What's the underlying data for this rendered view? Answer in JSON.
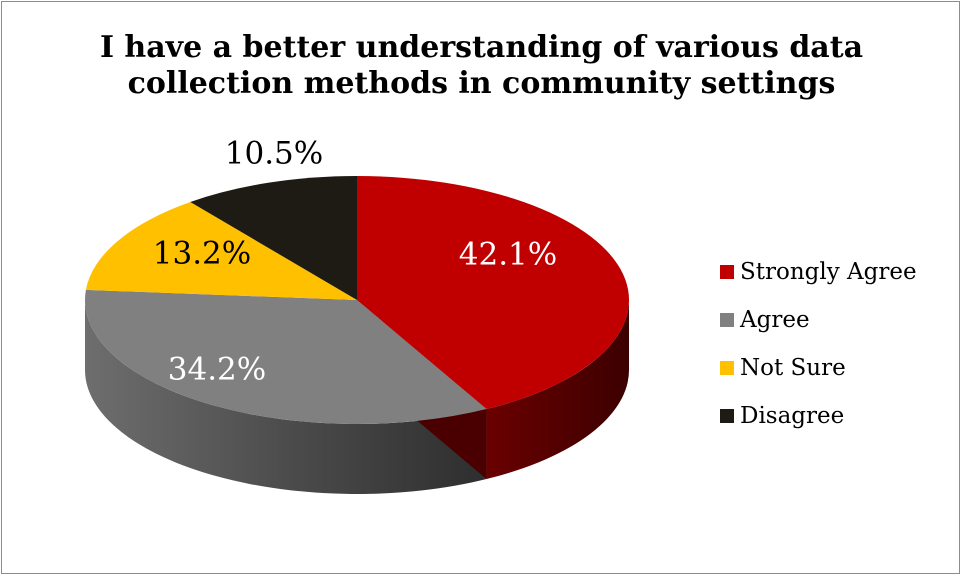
{
  "chart_data": {
    "type": "pie",
    "title": [
      "I have a better understanding of various data",
      "collection methods in community settings"
    ],
    "categories": [
      "Strongly Agree",
      "Agree",
      "Not Sure",
      "Disagree"
    ],
    "values": [
      42.1,
      34.2,
      13.2,
      10.5
    ],
    "data_labels": [
      "42.1%",
      "34.2%",
      "13.2%",
      "10.5%"
    ],
    "colors": [
      "#c00000",
      "#808080",
      "#ffc000",
      "#1e1a14"
    ],
    "legend_position": "right",
    "style": "3d"
  }
}
